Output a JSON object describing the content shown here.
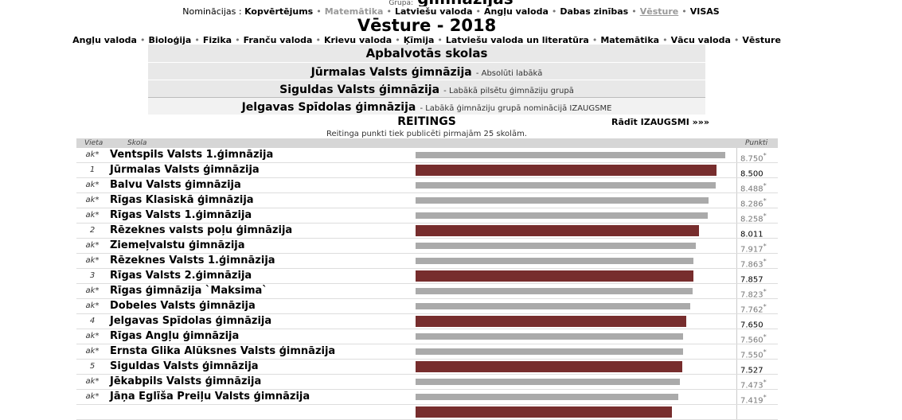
{
  "grupa": {
    "label": "Grupa:",
    "value": "ģimnāzijas"
  },
  "nominacijas": {
    "label": "Nominācijas :",
    "items": [
      {
        "label": "Kopvērtējums",
        "state": "normal"
      },
      {
        "label": "Matemātika",
        "state": "muted"
      },
      {
        "label": "Latviešu valoda",
        "state": "normal"
      },
      {
        "label": "Angļu valoda",
        "state": "normal"
      },
      {
        "label": "Dabas zinības",
        "state": "normal"
      },
      {
        "label": "Vēsture",
        "state": "current"
      },
      {
        "label": "VISAS",
        "state": "normal"
      }
    ]
  },
  "page_title": "Vēsture - 2018",
  "subjects": [
    "Angļu valoda",
    "Bioloģija",
    "Fizika",
    "Franču valoda",
    "Krievu valoda",
    "Ķīmija",
    "Latviešu valoda un literatūra",
    "Matemātika",
    "Vācu valoda",
    "Vēsture"
  ],
  "awards": {
    "title": "Apbalvotās skolas",
    "items": [
      {
        "name": "Jūrmalas Valsts ģimnāzija",
        "desc": "- Absolūti labākā"
      },
      {
        "name": "Siguldas Valsts ģimnāzija",
        "desc": "- Labākā pilsētu ģimnāziju grupā"
      },
      {
        "name": "Jelgavas Spīdolas ģimnāzija",
        "desc": "- Labākā ģimnāziju grupā nominācijā IZAUGSME"
      }
    ]
  },
  "reitings": {
    "title": "REITINGS",
    "link": "Rādīt IZAUGSMI »»»",
    "note": "Reitinga punkti tiek publicēti pirmajām 25 skolām.",
    "columns": {
      "vieta": "Vieta",
      "skola": "Skola",
      "punkti": "Punkti"
    },
    "bar_scale_max": 9.0,
    "rows": [
      {
        "vieta": "ak*",
        "skola": "Ventspils Valsts 1.ģimnāzija",
        "punkti": "8.750",
        "star": "*",
        "value": 8.75,
        "winner": false
      },
      {
        "vieta": "1",
        "skola": "Jūrmalas Valsts ģimnāzija",
        "punkti": "8.500",
        "star": "",
        "value": 8.5,
        "winner": true
      },
      {
        "vieta": "ak*",
        "skola": "Balvu Valsts ģimnāzija",
        "punkti": "8.488",
        "star": "*",
        "value": 8.488,
        "winner": false
      },
      {
        "vieta": "ak*",
        "skola": "Rīgas Klasiskā ģimnāzija",
        "punkti": "8.286",
        "star": "*",
        "value": 8.286,
        "winner": false
      },
      {
        "vieta": "ak*",
        "skola": "Rīgas Valsts 1.ģimnāzija",
        "punkti": "8.258",
        "star": "*",
        "value": 8.258,
        "winner": false
      },
      {
        "vieta": "2",
        "skola": "Rēzeknes valsts poļu ģimnāzija",
        "punkti": "8.011",
        "star": "",
        "value": 8.011,
        "winner": true
      },
      {
        "vieta": "ak*",
        "skola": "Ziemeļvalstu ģimnāzija",
        "punkti": "7.917",
        "star": "*",
        "value": 7.917,
        "winner": false
      },
      {
        "vieta": "ak*",
        "skola": "Rēzeknes Valsts 1.ģimnāzija",
        "punkti": "7.863",
        "star": "*",
        "value": 7.863,
        "winner": false
      },
      {
        "vieta": "3",
        "skola": "Rīgas Valsts 2.ģimnāzija",
        "punkti": "7.857",
        "star": "",
        "value": 7.857,
        "winner": true
      },
      {
        "vieta": "ak*",
        "skola": "Rīgas ģimnāzija `Maksima`",
        "punkti": "7.823",
        "star": "*",
        "value": 7.823,
        "winner": false
      },
      {
        "vieta": "ak*",
        "skola": "Dobeles Valsts ģimnāzija",
        "punkti": "7.762",
        "star": "*",
        "value": 7.762,
        "winner": false
      },
      {
        "vieta": "4",
        "skola": "Jelgavas Spīdolas ģimnāzija",
        "punkti": "7.650",
        "star": "",
        "value": 7.65,
        "winner": true
      },
      {
        "vieta": "ak*",
        "skola": "Rīgas Angļu ģimnāzija",
        "punkti": "7.560",
        "star": "*",
        "value": 7.56,
        "winner": false
      },
      {
        "vieta": "ak*",
        "skola": "Ernsta Glika Alūksnes Valsts ģimnāzija",
        "punkti": "7.550",
        "star": "*",
        "value": 7.55,
        "winner": false
      },
      {
        "vieta": "5",
        "skola": "Siguldas Valsts ģimnāzija",
        "punkti": "7.527",
        "star": "",
        "value": 7.527,
        "winner": true
      },
      {
        "vieta": "ak*",
        "skola": "Jēkabpils Valsts ģimnāzija",
        "punkti": "7.473",
        "star": "*",
        "value": 7.473,
        "winner": false
      },
      {
        "vieta": "ak*",
        "skola": "Jāņa Eglīša Preiļu Valsts ģimnāzija",
        "punkti": "7.419",
        "star": "*",
        "value": 7.419,
        "winner": false
      },
      {
        "vieta": "",
        "skola": "",
        "punkti": "",
        "star": "",
        "value": 7.25,
        "winner": true
      }
    ]
  },
  "colors": {
    "winner_bar": "#772d2d",
    "other_bar": "#aaaaaa",
    "header_bg": "#d6d6d6",
    "awards_bg": "#e8e8e8"
  }
}
